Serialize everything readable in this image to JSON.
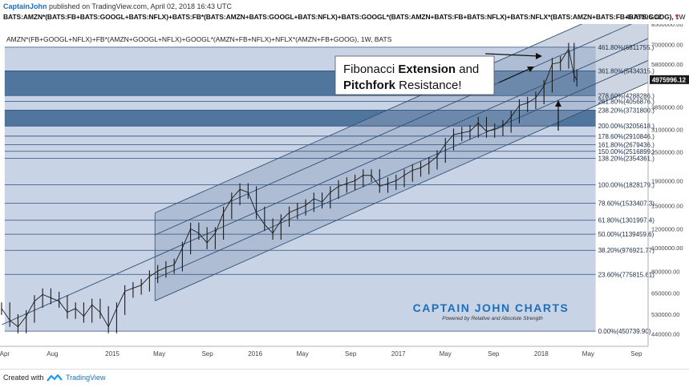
{
  "header": {
    "author": "CaptainJohn",
    "published_text": "published on TradingView.com, April 02, 2018 16:43 UTC",
    "symbol": "BATS:AMZN*(BATS:FB+BATS:GOOGL+BATS:NFLX)+BATS:FB*(BATS:AMZN+BATS:GOOGL+BATS:NFLX)+BATS:GOOGL*(BATS:AMZN+BATS:FB+BATS:NFLX)+BATS:NFLX*(BATS:AMZN+BATS:FB+BATS:GOOG),",
    "interval": "1W",
    "last_price": "4975996.12"
  },
  "footer": {
    "created_with": "Created with",
    "brand": "TradingView"
  },
  "colors": {
    "shade": "#c8d3e6",
    "band_dark": "#3c6591",
    "fib_line": "#2d4f7c",
    "pitchfork_line": "#2f4f74",
    "candle": "#1a1a1a",
    "price_badge": "#1a1a1a"
  },
  "chart_data": {
    "type": "candlestick",
    "legend_text": "AMZN*(FB+GOOGL+NFLX)+FB*(AMZN+GOOGL+NFLX)+GOOGL*(AMZN+FB+NFLX)+NFLX*(AMZN+FB+GOOG), 1W, BATS",
    "annotation": {
      "part1": "Fibonacci ",
      "bold1": "Extension",
      "part2": " and",
      "bold2": "Pitchfork",
      "part3": " Resistance!"
    },
    "watermark": {
      "title": "CAPTAIN JOHN CHARTS",
      "subtitle": "Powered by Relative and Absolute Strength"
    },
    "current_price": "4975996.12",
    "y_axis": {
      "scale": "log",
      "range": [
        390000,
        8500000
      ],
      "ticks": [
        {
          "v": 8500000,
          "label": "8500000.00"
        },
        {
          "v": 7000000,
          "label": "7000000.00"
        },
        {
          "v": 5800000,
          "label": "5800000.00"
        },
        {
          "v": 3850000,
          "label": "3850000.00"
        },
        {
          "v": 3100000,
          "label": "3100000.00"
        },
        {
          "v": 2500000,
          "label": "2500000.00"
        },
        {
          "v": 1900000,
          "label": "1900000.00"
        },
        {
          "v": 1500000,
          "label": "1500000.00"
        },
        {
          "v": 1200000,
          "label": "1200000.00"
        },
        {
          "v": 1000000,
          "label": "1000000.00"
        },
        {
          "v": 800000,
          "label": "800000.00"
        },
        {
          "v": 650000,
          "label": "650000.00"
        },
        {
          "v": 530000,
          "label": "530000.00"
        },
        {
          "v": 440000,
          "label": "440000.00"
        }
      ]
    },
    "x_axis": {
      "range": [
        "2014-03-20",
        "2018-10-01"
      ],
      "ticks": [
        {
          "date": "2014-04-01",
          "label": "Apr"
        },
        {
          "date": "2014-08-01",
          "label": "Aug"
        },
        {
          "date": "2015-01-01",
          "label": "2015"
        },
        {
          "date": "2015-05-01",
          "label": "May"
        },
        {
          "date": "2015-09-01",
          "label": "Sep"
        },
        {
          "date": "2016-01-01",
          "label": "2016"
        },
        {
          "date": "2016-05-01",
          "label": "May"
        },
        {
          "date": "2016-09-01",
          "label": "Sep"
        },
        {
          "date": "2017-01-01",
          "label": "2017"
        },
        {
          "date": "2017-05-01",
          "label": "May"
        },
        {
          "date": "2017-09-01",
          "label": "Sep"
        },
        {
          "date": "2018-01-01",
          "label": "2018"
        },
        {
          "date": "2018-05-01",
          "label": "May"
        },
        {
          "date": "2018-09-01",
          "label": "Sep"
        }
      ]
    },
    "fib_levels": [
      {
        "ratio": "0.00%",
        "price": 450739.9,
        "label": "0.00%(450739.90)"
      },
      {
        "ratio": "23.60%",
        "price": 775815.61,
        "label": "23.60%(775815.61)"
      },
      {
        "ratio": "38.20%",
        "price": 976921.77,
        "label": "38.20%(976921.77)"
      },
      {
        "ratio": "50.00%",
        "price": 1139459.6,
        "label": "50.00%(1139459.6)"
      },
      {
        "ratio": "61.80%",
        "price": 1301997.4,
        "label": "61.80%(1301997.4)"
      },
      {
        "ratio": "78.60%",
        "price": 1533407.3,
        "label": "78.60%(1533407.3)"
      },
      {
        "ratio": "100.00%",
        "price": 1828179.0,
        "label": "100.00%(1828179.)"
      },
      {
        "ratio": "138.20%",
        "price": 2354361.0,
        "label": "138.20%(2354361.)"
      },
      {
        "ratio": "150.00%",
        "price": 2516899.0,
        "label": "150.00%(2516899.)"
      },
      {
        "ratio": "161.80%",
        "price": 2679436.0,
        "label": "161.80%(2679436.)"
      },
      {
        "ratio": "178.60%",
        "price": 2910846.0,
        "label": "178.60%(2910846.)"
      },
      {
        "ratio": "200.00%",
        "price": 3205618.0,
        "label": "200.00%(3205618.)"
      },
      {
        "ratio": "238.20%",
        "price": 3731800.0,
        "label": "238.20%(3731800.)"
      },
      {
        "ratio": "261.80%",
        "price": 4056876.0,
        "label": "261.80%(4056876.)"
      },
      {
        "ratio": "278.60%",
        "price": 4288286.0,
        "label": "278.60%(4288286.)"
      },
      {
        "ratio": "361.80%",
        "price": 5434315.0,
        "label": "361.80%(5434315.)"
      },
      {
        "ratio": "461.80%",
        "price": 6811755.0,
        "label": "461.80%(6811755.)"
      }
    ],
    "fib_start_date": "2014-04-01",
    "fib_end_date": "2018-05-20",
    "dark_bands": [
      {
        "from": 4288286,
        "to": 5434315
      },
      {
        "from": 3205618,
        "to": 3731800
      }
    ],
    "pitchfork": {
      "start_date": "2014-03-25",
      "end_date": "2018-10-01",
      "median_start": 480000,
      "median_end": 7400000,
      "offsets": [
        -0.42,
        -0.21,
        0.21,
        0.42
      ],
      "shaded_start_date": "2015-04-20"
    },
    "candles_weekly": [
      {
        "d": "2014-03-24",
        "c": 560000
      },
      {
        "d": "2014-04-14",
        "c": 500000
      },
      {
        "d": "2014-05-05",
        "c": 470000
      },
      {
        "d": "2014-05-26",
        "c": 520000
      },
      {
        "d": "2014-06-16",
        "c": 600000
      },
      {
        "d": "2014-07-07",
        "c": 640000
      },
      {
        "d": "2014-07-28",
        "c": 620000
      },
      {
        "d": "2014-08-18",
        "c": 600000
      },
      {
        "d": "2014-09-08",
        "c": 540000
      },
      {
        "d": "2014-09-29",
        "c": 560000
      },
      {
        "d": "2014-10-20",
        "c": 520000
      },
      {
        "d": "2014-11-10",
        "c": 580000
      },
      {
        "d": "2014-12-01",
        "c": 540000
      },
      {
        "d": "2014-12-22",
        "c": 470000
      },
      {
        "d": "2015-01-12",
        "c": 560000
      },
      {
        "d": "2015-02-02",
        "c": 660000
      },
      {
        "d": "2015-02-23",
        "c": 680000
      },
      {
        "d": "2015-03-16",
        "c": 700000
      },
      {
        "d": "2015-04-06",
        "c": 760000
      },
      {
        "d": "2015-04-27",
        "c": 800000
      },
      {
        "d": "2015-05-18",
        "c": 830000
      },
      {
        "d": "2015-06-08",
        "c": 850000
      },
      {
        "d": "2015-06-29",
        "c": 1000000
      },
      {
        "d": "2015-07-20",
        "c": 1200000
      },
      {
        "d": "2015-08-10",
        "c": 1150000
      },
      {
        "d": "2015-08-31",
        "c": 1050000
      },
      {
        "d": "2015-09-21",
        "c": 1150000
      },
      {
        "d": "2015-10-12",
        "c": 1400000
      },
      {
        "d": "2015-11-02",
        "c": 1600000
      },
      {
        "d": "2015-11-23",
        "c": 1750000
      },
      {
        "d": "2015-12-14",
        "c": 1700000
      },
      {
        "d": "2016-01-04",
        "c": 1400000
      },
      {
        "d": "2016-01-25",
        "c": 1250000
      },
      {
        "d": "2016-02-15",
        "c": 1150000
      },
      {
        "d": "2016-03-07",
        "c": 1300000
      },
      {
        "d": "2016-03-28",
        "c": 1400000
      },
      {
        "d": "2016-04-18",
        "c": 1450000
      },
      {
        "d": "2016-05-09",
        "c": 1500000
      },
      {
        "d": "2016-05-30",
        "c": 1600000
      },
      {
        "d": "2016-06-20",
        "c": 1550000
      },
      {
        "d": "2016-07-11",
        "c": 1700000
      },
      {
        "d": "2016-08-01",
        "c": 1800000
      },
      {
        "d": "2016-08-22",
        "c": 1850000
      },
      {
        "d": "2016-09-12",
        "c": 1900000
      },
      {
        "d": "2016-10-03",
        "c": 2000000
      },
      {
        "d": "2016-10-24",
        "c": 2000000
      },
      {
        "d": "2016-11-14",
        "c": 1800000
      },
      {
        "d": "2016-12-05",
        "c": 1850000
      },
      {
        "d": "2016-12-26",
        "c": 1900000
      },
      {
        "d": "2017-01-16",
        "c": 2000000
      },
      {
        "d": "2017-02-06",
        "c": 2100000
      },
      {
        "d": "2017-02-27",
        "c": 2150000
      },
      {
        "d": "2017-03-20",
        "c": 2250000
      },
      {
        "d": "2017-04-10",
        "c": 2400000
      },
      {
        "d": "2017-05-01",
        "c": 2700000
      },
      {
        "d": "2017-05-22",
        "c": 2950000
      },
      {
        "d": "2017-06-12",
        "c": 3000000
      },
      {
        "d": "2017-07-03",
        "c": 3050000
      },
      {
        "d": "2017-07-24",
        "c": 3300000
      },
      {
        "d": "2017-08-14",
        "c": 3050000
      },
      {
        "d": "2017-09-04",
        "c": 3100000
      },
      {
        "d": "2017-09-25",
        "c": 3200000
      },
      {
        "d": "2017-10-16",
        "c": 3500000
      },
      {
        "d": "2017-11-06",
        "c": 3900000
      },
      {
        "d": "2017-11-27",
        "c": 4000000
      },
      {
        "d": "2017-12-18",
        "c": 4200000
      },
      {
        "d": "2018-01-08",
        "c": 4700000
      },
      {
        "d": "2018-01-29",
        "c": 5800000
      },
      {
        "d": "2018-02-19",
        "c": 5900000
      },
      {
        "d": "2018-03-12",
        "c": 6700000
      },
      {
        "d": "2018-03-26",
        "c": 5200000
      },
      {
        "d": "2018-04-02",
        "c": 4975996
      }
    ]
  }
}
